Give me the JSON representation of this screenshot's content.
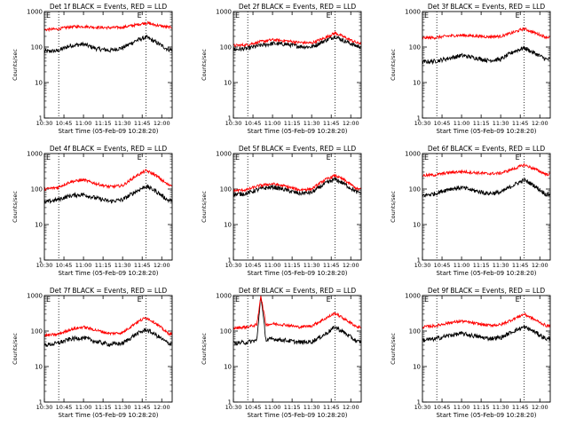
{
  "figure": {
    "common_xlabel": "Start Time (05-Feb-09 10:28:20)",
    "common_ylabel": "Counts/sec",
    "x_tick_labels": [
      "10:30",
      "10:45",
      "11:00",
      "11:15",
      "11:30",
      "11:45",
      "12:00"
    ],
    "y_tick_labels": [
      "1",
      "10",
      "100",
      "1000"
    ],
    "marker_label": "E",
    "colors": {
      "events": "#000000",
      "lld": "#ff0000",
      "axes": "#000000",
      "background": "#ffffff"
    }
  },
  "chart_data": [
    {
      "type": "line",
      "title": "Det 1f BLACK = Events, RED = LLD",
      "xlabel": "Start Time (05-Feb-09 10:28:20)",
      "ylabel": "Counts/sec",
      "x_unit": "HH:MM",
      "xlim": [
        "10:30",
        "12:08"
      ],
      "ylim": [
        1,
        1000
      ],
      "yscale": "log",
      "vertical_dotted_markers": [
        "10:41",
        "11:48"
      ],
      "x": [
        "10:30",
        "10:40",
        "10:50",
        "11:00",
        "11:10",
        "11:20",
        "11:30",
        "11:40",
        "11:48",
        "11:55",
        "12:05"
      ],
      "series": [
        {
          "name": "Events",
          "color": "#000000",
          "values": [
            75,
            78,
            110,
            120,
            90,
            80,
            95,
            150,
            190,
            140,
            85
          ]
        },
        {
          "name": "LLD",
          "color": "#ff0000",
          "values": [
            310,
            320,
            370,
            380,
            360,
            350,
            360,
            420,
            480,
            420,
            360
          ]
        }
      ]
    },
    {
      "type": "line",
      "title": "Det 2f BLACK = Events, RED = LLD",
      "xlabel": "Start Time (05-Feb-09 10:28:20)",
      "ylabel": "Counts/sec",
      "x_unit": "HH:MM",
      "xlim": [
        "10:30",
        "12:08"
      ],
      "ylim": [
        1,
        1000
      ],
      "yscale": "log",
      "vertical_dotted_markers": [
        "10:41",
        "11:48"
      ],
      "x": [
        "10:30",
        "10:40",
        "10:50",
        "11:00",
        "11:10",
        "11:20",
        "11:30",
        "11:40",
        "11:48",
        "11:55",
        "12:05"
      ],
      "series": [
        {
          "name": "Events",
          "color": "#000000",
          "values": [
            85,
            90,
            110,
            125,
            120,
            105,
            100,
            150,
            200,
            150,
            105
          ]
        },
        {
          "name": "LLD",
          "color": "#ff0000",
          "values": [
            110,
            115,
            140,
            160,
            150,
            135,
            130,
            180,
            250,
            190,
            130
          ]
        }
      ]
    },
    {
      "type": "line",
      "title": "Det 3f BLACK = Events, RED = LLD",
      "xlabel": "Start Time (05-Feb-09 10:28:20)",
      "ylabel": "Counts/sec",
      "x_unit": "HH:MM",
      "xlim": [
        "10:30",
        "12:08"
      ],
      "ylim": [
        1,
        1000
      ],
      "yscale": "log",
      "vertical_dotted_markers": [
        "10:41",
        "11:48"
      ],
      "x": [
        "10:30",
        "10:40",
        "10:50",
        "11:00",
        "11:10",
        "11:20",
        "11:30",
        "11:40",
        "11:48",
        "11:55",
        "12:05"
      ],
      "series": [
        {
          "name": "Events",
          "color": "#000000",
          "values": [
            38,
            40,
            48,
            58,
            50,
            42,
            45,
            75,
            95,
            70,
            45
          ]
        },
        {
          "name": "LLD",
          "color": "#ff0000",
          "values": [
            180,
            185,
            205,
            215,
            205,
            195,
            200,
            260,
            330,
            260,
            190
          ]
        }
      ]
    },
    {
      "type": "line",
      "title": "Det 4f BLACK = Events, RED = LLD",
      "xlabel": "Start Time (05-Feb-09 10:28:20)",
      "ylabel": "Counts/sec",
      "x_unit": "HH:MM",
      "xlim": [
        "10:30",
        "12:08"
      ],
      "ylim": [
        1,
        1000
      ],
      "yscale": "log",
      "vertical_dotted_markers": [
        "10:41",
        "11:48"
      ],
      "x": [
        "10:30",
        "10:40",
        "10:50",
        "11:00",
        "11:10",
        "11:20",
        "11:30",
        "11:40",
        "11:48",
        "11:55",
        "12:05"
      ],
      "series": [
        {
          "name": "Events",
          "color": "#000000",
          "values": [
            42,
            50,
            65,
            70,
            55,
            45,
            50,
            85,
            120,
            90,
            48
          ]
        },
        {
          "name": "LLD",
          "color": "#ff0000",
          "values": [
            100,
            110,
            160,
            180,
            140,
            115,
            125,
            230,
            330,
            250,
            130
          ]
        }
      ]
    },
    {
      "type": "line",
      "title": "Det 5f BLACK = Events, RED = LLD",
      "xlabel": "Start Time (05-Feb-09 10:28:20)",
      "ylabel": "Counts/sec",
      "x_unit": "HH:MM",
      "xlim": [
        "10:30",
        "12:08"
      ],
      "ylim": [
        1,
        1000
      ],
      "yscale": "log",
      "vertical_dotted_markers": [
        "10:41",
        "11:48"
      ],
      "x": [
        "10:30",
        "10:40",
        "10:50",
        "11:00",
        "11:10",
        "11:20",
        "11:30",
        "11:40",
        "11:48",
        "11:55",
        "12:05"
      ],
      "series": [
        {
          "name": "Events",
          "color": "#000000",
          "values": [
            70,
            75,
            100,
            115,
            95,
            75,
            80,
            140,
            190,
            140,
            80
          ]
        },
        {
          "name": "LLD",
          "color": "#ff0000",
          "values": [
            90,
            95,
            125,
            140,
            120,
            95,
            100,
            180,
            240,
            180,
            100
          ]
        }
      ]
    },
    {
      "type": "line",
      "title": "Det 6f BLACK = Events, RED = LLD",
      "xlabel": "Start Time (05-Feb-09 10:28:20)",
      "ylabel": "Counts/sec",
      "x_unit": "HH:MM",
      "xlim": [
        "10:30",
        "12:08"
      ],
      "ylim": [
        1,
        1000
      ],
      "yscale": "log",
      "vertical_dotted_markers": [
        "10:41",
        "11:48"
      ],
      "x": [
        "10:30",
        "10:40",
        "10:50",
        "11:00",
        "11:10",
        "11:20",
        "11:30",
        "11:40",
        "11:48",
        "11:55",
        "12:05"
      ],
      "series": [
        {
          "name": "Events",
          "color": "#000000",
          "values": [
            65,
            75,
            100,
            110,
            90,
            75,
            80,
            130,
            180,
            130,
            70
          ]
        },
        {
          "name": "LLD",
          "color": "#ff0000",
          "values": [
            240,
            250,
            290,
            310,
            290,
            270,
            280,
            370,
            480,
            380,
            260
          ]
        }
      ]
    },
    {
      "type": "line",
      "title": "Det 7f BLACK = Events, RED = LLD",
      "xlabel": "Start Time (05-Feb-09 10:28:20)",
      "ylabel": "Counts/sec",
      "x_unit": "HH:MM",
      "xlim": [
        "10:30",
        "12:08"
      ],
      "ylim": [
        1,
        1000
      ],
      "yscale": "log",
      "vertical_dotted_markers": [
        "10:41",
        "11:48"
      ],
      "x": [
        "10:30",
        "10:40",
        "10:50",
        "11:00",
        "11:10",
        "11:20",
        "11:30",
        "11:40",
        "11:48",
        "11:55",
        "12:05"
      ],
      "series": [
        {
          "name": "Events",
          "color": "#000000",
          "values": [
            40,
            45,
            60,
            65,
            50,
            42,
            45,
            80,
            110,
            80,
            45
          ]
        },
        {
          "name": "LLD",
          "color": "#ff0000",
          "values": [
            75,
            80,
            110,
            130,
            105,
            85,
            90,
            170,
            240,
            170,
            85
          ]
        }
      ]
    },
    {
      "type": "line",
      "title": "Det 8f BLACK = Events, RED = LLD",
      "xlabel": "Start Time (05-Feb-09 10:28:20)",
      "ylabel": "Counts/sec",
      "x_unit": "HH:MM",
      "xlim": [
        "10:30",
        "12:08"
      ],
      "ylim": [
        1,
        1000
      ],
      "yscale": "log",
      "vertical_dotted_markers": [
        "10:41",
        "11:48"
      ],
      "x": [
        "10:30",
        "10:40",
        "10:48",
        "10:51",
        "10:55",
        "11:00",
        "11:10",
        "11:20",
        "11:30",
        "11:40",
        "11:48",
        "11:55",
        "12:05"
      ],
      "series": [
        {
          "name": "Events",
          "color": "#000000",
          "values": [
            45,
            48,
            55,
            1000,
            55,
            60,
            55,
            48,
            50,
            80,
            130,
            90,
            50
          ]
        },
        {
          "name": "LLD",
          "color": "#ff0000",
          "values": [
            120,
            130,
            150,
            1000,
            150,
            160,
            150,
            130,
            140,
            220,
            320,
            220,
            130
          ]
        }
      ]
    },
    {
      "type": "line",
      "title": "Det 9f BLACK = Events, RED = LLD",
      "xlabel": "Start Time (05-Feb-09 10:28:20)",
      "ylabel": "Counts/sec",
      "x_unit": "HH:MM",
      "xlim": [
        "10:30",
        "12:08"
      ],
      "ylim": [
        1,
        1000
      ],
      "yscale": "log",
      "vertical_dotted_markers": [
        "10:41",
        "11:48"
      ],
      "x": [
        "10:30",
        "10:40",
        "10:50",
        "11:00",
        "11:10",
        "11:20",
        "11:30",
        "11:40",
        "11:48",
        "11:55",
        "12:05"
      ],
      "series": [
        {
          "name": "Events",
          "color": "#000000",
          "values": [
            55,
            60,
            75,
            85,
            72,
            62,
            65,
            100,
            130,
            100,
            60
          ]
        },
        {
          "name": "LLD",
          "color": "#ff0000",
          "values": [
            130,
            140,
            170,
            190,
            165,
            145,
            150,
            220,
            300,
            220,
            140
          ]
        }
      ]
    }
  ]
}
